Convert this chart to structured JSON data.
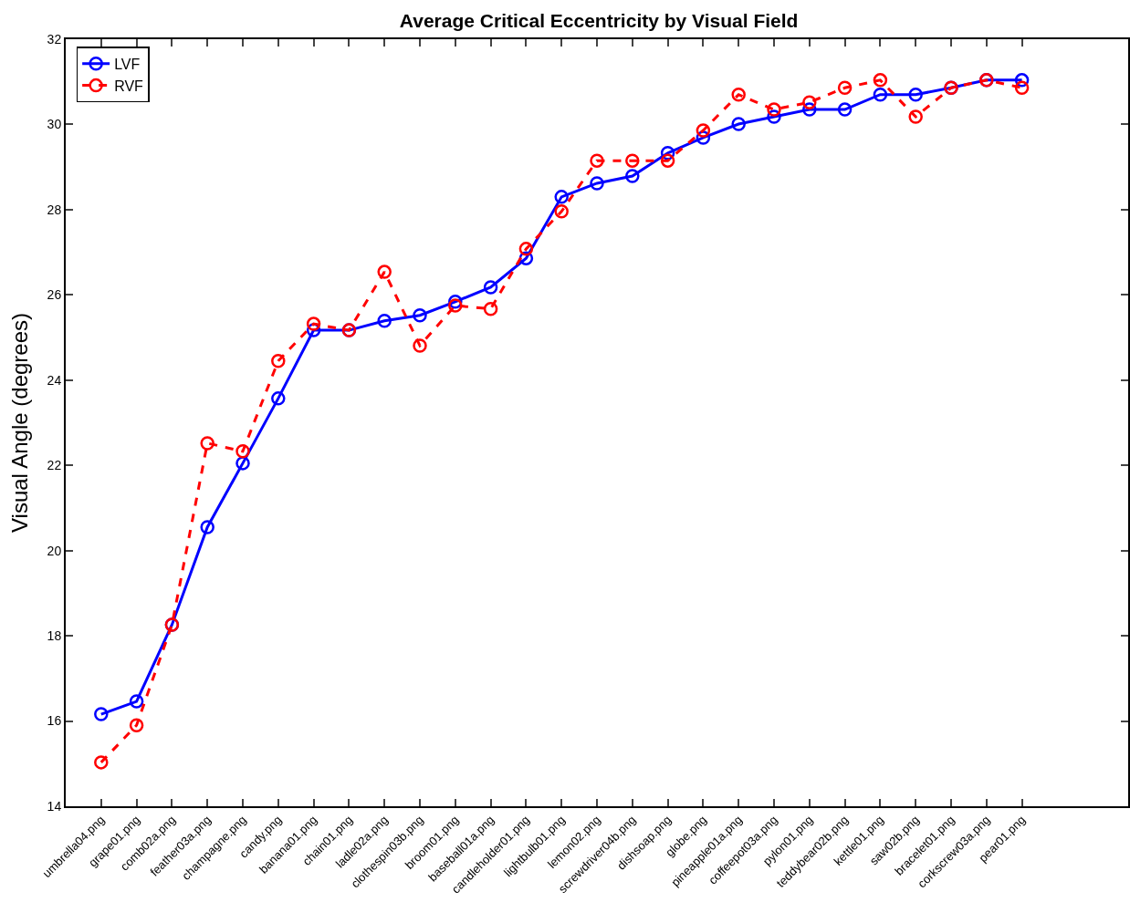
{
  "chart_data": {
    "type": "line",
    "title": "Average Critical Eccentricity by Visual Field",
    "ylabel": "Visual Angle (degrees)",
    "categories": [
      "umbrella04.png",
      "grape01.png",
      "comb02a.png",
      "feather03a.png",
      "champagne.png",
      "candy.png",
      "banana01.png",
      "chain01.png",
      "ladle02a.png",
      "clothespin03b.png",
      "broom01.png",
      "baseball01a.png",
      "candleholder01.png",
      "lightbulb01.png",
      "lemon02.png",
      "screwdriver04b.png",
      "dishsoap.png",
      "globe.png",
      "pineapple01a.png",
      "coffeepot03a.png",
      "pylon01.png",
      "teddybear02b.png",
      "kettle01.png",
      "saw02b.png",
      "bracelet01.png",
      "corkscrew03a.png",
      "pear01.png"
    ],
    "series": [
      {
        "name": "LVF",
        "color": "#0000ff",
        "line_style": "solid",
        "values": [
          16.16,
          16.46,
          18.26,
          20.55,
          22.05,
          23.57,
          25.17,
          25.17,
          25.39,
          25.52,
          25.84,
          26.18,
          26.86,
          28.3,
          28.62,
          28.79,
          29.33,
          29.69,
          30.01,
          30.18,
          30.35,
          30.35,
          30.7,
          30.7,
          30.86,
          31.04,
          31.04
        ]
      },
      {
        "name": "RVF",
        "color": "#ff0000",
        "line_style": "dashed",
        "values": [
          15.03,
          15.9,
          18.26,
          22.52,
          22.33,
          24.45,
          25.32,
          25.17,
          26.54,
          24.81,
          25.75,
          25.67,
          27.08,
          27.96,
          29.15,
          29.15,
          29.15,
          29.86,
          30.7,
          30.35,
          30.52,
          30.86,
          31.04,
          30.18,
          30.86,
          31.04,
          30.86
        ]
      }
    ],
    "ylim": [
      14,
      32
    ],
    "yticks": [
      14,
      16,
      18,
      20,
      22,
      24,
      26,
      28,
      30,
      32
    ],
    "grid": false,
    "legend": "top left",
    "marker": "circle"
  }
}
